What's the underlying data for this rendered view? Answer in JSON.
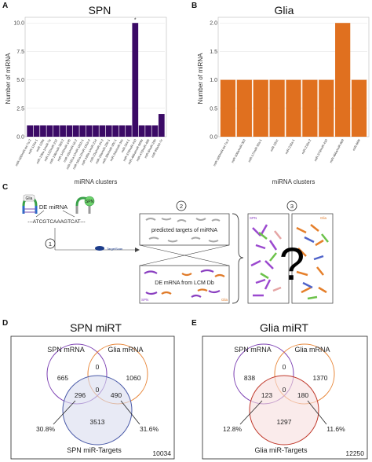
{
  "panels": {
    "A": "A",
    "B": "B",
    "C": "C",
    "D": "D",
    "E": "E"
  },
  "chart_data": [
    {
      "type": "bar",
      "panel": "A",
      "title": "SPN",
      "ylabel": "Number of miRNA",
      "xlabel": "miRNA clusters",
      "ylim": [
        0,
        10.5
      ],
      "yticks": [
        "0.0",
        "2.5",
        "5.0",
        "7.5",
        "10.0"
      ],
      "color": "#3b0a66",
      "annotation": "*",
      "categories": [
        "miR-100/miR-let-7a-2",
        "miR-124a-1",
        "miR-128a",
        "miR-130a-1/miR-7a",
        "miR-132/miR-212",
        "miR-136/miR-369-2",
        "miR-143/miR-145",
        "miR-15b/miR-16-2",
        "miR-181a-1/miR-181b-1",
        "miR-181a-2/miR-181b-2",
        "miR-199a-1/miR-214",
        "miR-23a/miR-24-2",
        "miR-29a/miR-29b-1",
        "miR-30e/miR-30c-1",
        "miR-34b/miR-34c",
        "miR-344-1",
        "miR-379/miR-410",
        "miR-466a/miR-669a",
        "miR-470/miR-465",
        "miR-8/miR-29b",
        "miR-99a/let-7c"
      ],
      "values": [
        1,
        1,
        1,
        1,
        1,
        1,
        1,
        1,
        1,
        1,
        1,
        1,
        1,
        1,
        1,
        1,
        10,
        1,
        1,
        1,
        2
      ]
    },
    {
      "type": "bar",
      "panel": "B",
      "title": "Glia",
      "ylabel": "Number of miRNA",
      "xlabel": "miRNA clusters",
      "ylim": [
        0,
        2.1
      ],
      "yticks": [
        "0.0",
        "0.5",
        "1.0",
        "1.5",
        "2.0"
      ],
      "color": "#e0701f",
      "categories": [
        "miR-100/miR-let-7a-2",
        "miR-106a/miR-363",
        "miR-17/miR-92a-1",
        "miR-181c",
        "miR-218a-1",
        "miR-218a-2",
        "miR-379/miR-410",
        "miR-466a/miR-669",
        "miR-669l"
      ],
      "values": [
        1,
        1,
        1,
        1,
        1,
        1,
        1,
        2,
        1
      ]
    }
  ],
  "schematic": {
    "glia": "Glia",
    "spn": "SPN",
    "de_mirna": "DE miRNA",
    "sequence": "---ATCGTCAAAGTCAT---",
    "step1": "1",
    "step2": "2",
    "step3": "3",
    "targetscan": "TargetScan",
    "predicted": "predicted targets of miRNA",
    "de_mrna": "DE mRNA from LCM Db",
    "question": "?"
  },
  "venn_spn": {
    "title": "SPN miRT",
    "label_mrna": "SPN mRNA",
    "label_glia": "Glia mRNA",
    "label_targets": "SPN miR-Targets",
    "n_spn_only": "665",
    "n_glia_only": "1060",
    "n_center_top": "0",
    "n_center": "0",
    "n_spn_targets": "296",
    "n_glia_targets": "490",
    "n_targets_only": "3513",
    "pct_left": "30.8%",
    "pct_right": "31.6%",
    "total": "10034",
    "colors": {
      "spn": "#7b3fb2",
      "glia": "#e8873a",
      "targets": "#4a5aa8"
    }
  },
  "venn_glia": {
    "title": "Glia miRT",
    "label_mrna": "SPN mRNA",
    "label_glia": "Glia mRNA",
    "label_targets": "Glia miR-Targets",
    "n_spn_only": "838",
    "n_glia_only": "1370",
    "n_center_top": "0",
    "n_center": "0",
    "n_spn_targets": "123",
    "n_glia_targets": "180",
    "n_targets_only": "1297",
    "pct_left": "12.8%",
    "pct_right": "11.6%",
    "total": "12250",
    "colors": {
      "spn": "#7b3fb2",
      "glia": "#e8873a",
      "targets": "#c0392b"
    }
  }
}
